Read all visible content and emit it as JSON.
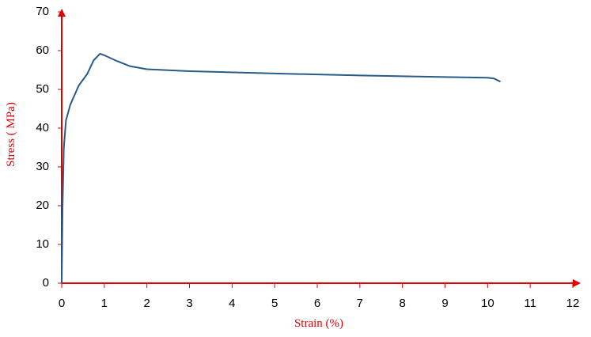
{
  "chart_data": {
    "type": "line",
    "x_label": "Strain (%)",
    "y_label": "Stress ( MPa)",
    "xlim": [
      0,
      12
    ],
    "ylim": [
      0,
      70
    ],
    "xticks": [
      0,
      1,
      2,
      3,
      4,
      5,
      6,
      7,
      8,
      9,
      10,
      11,
      12
    ],
    "yticks": [
      0,
      10,
      20,
      30,
      40,
      50,
      60,
      70
    ],
    "axis_color": "#e00000",
    "series": [
      {
        "color": "#2a5a8a",
        "x": [
          0,
          0.02,
          0.05,
          0.1,
          0.2,
          0.4,
          0.6,
          0.75,
          0.9,
          1.0,
          1.3,
          1.6,
          2,
          3,
          5,
          7,
          9,
          10,
          10.15,
          10.3
        ],
        "values": [
          0,
          20,
          35,
          42,
          46,
          51,
          54,
          57.5,
          59.2,
          58.8,
          57.3,
          56,
          55.2,
          54.7,
          54.1,
          53.6,
          53.2,
          53,
          52.8,
          52
        ]
      }
    ]
  }
}
